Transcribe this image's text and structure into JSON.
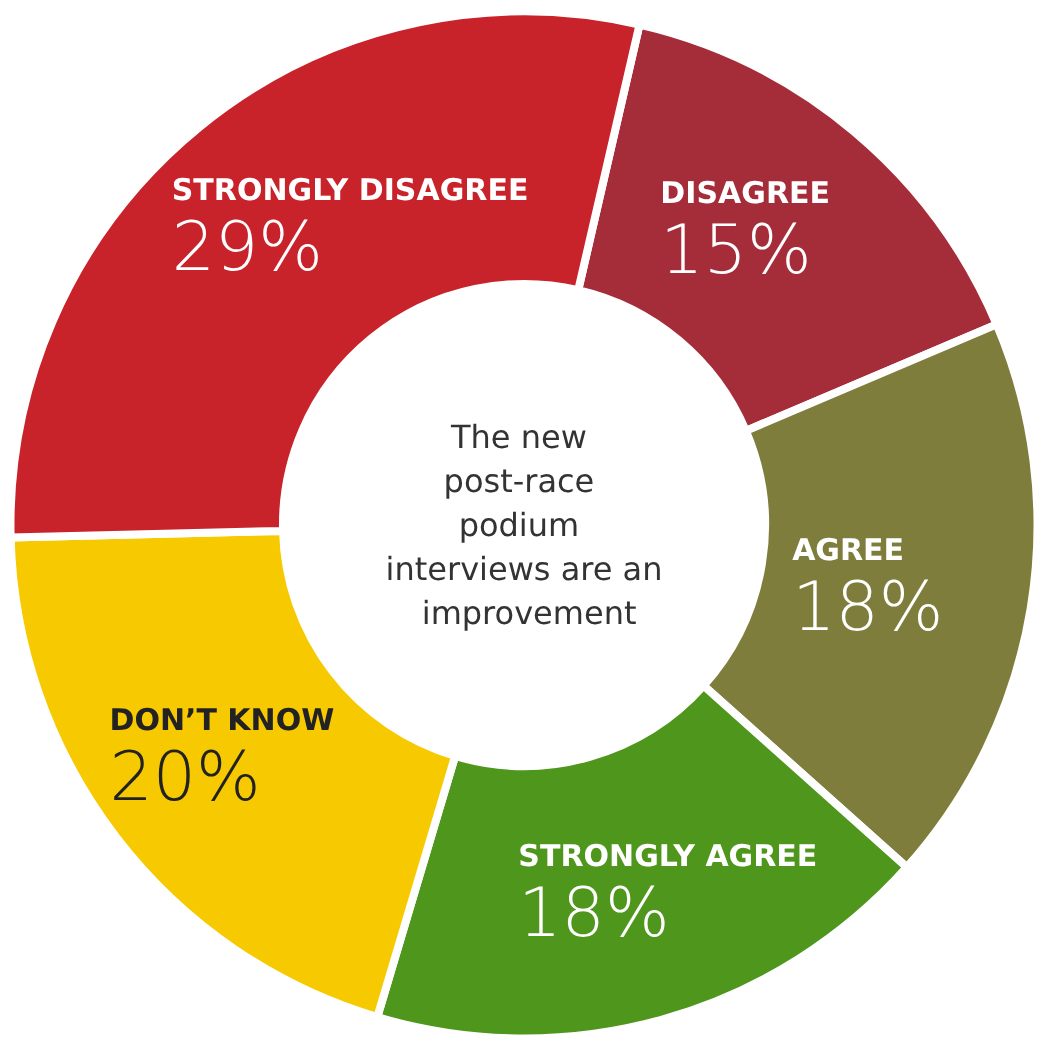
{
  "chart_data": {
    "type": "donut",
    "title": "The new post-race podium interviews are an improvement",
    "categories": [
      "DISAGREE",
      "AGREE",
      "STRONGLY AGREE",
      "DON’T KNOW",
      "STRONGLY DISAGREE"
    ],
    "values": [
      15,
      18,
      18,
      20,
      29
    ],
    "value_labels": [
      "15%",
      "18%",
      "18%",
      "20%",
      "29%"
    ],
    "colors": [
      "#a52d3a",
      "#7f7d3c",
      "#4f961c",
      "#f7c900",
      "#c8222a"
    ],
    "legend": false
  }
}
